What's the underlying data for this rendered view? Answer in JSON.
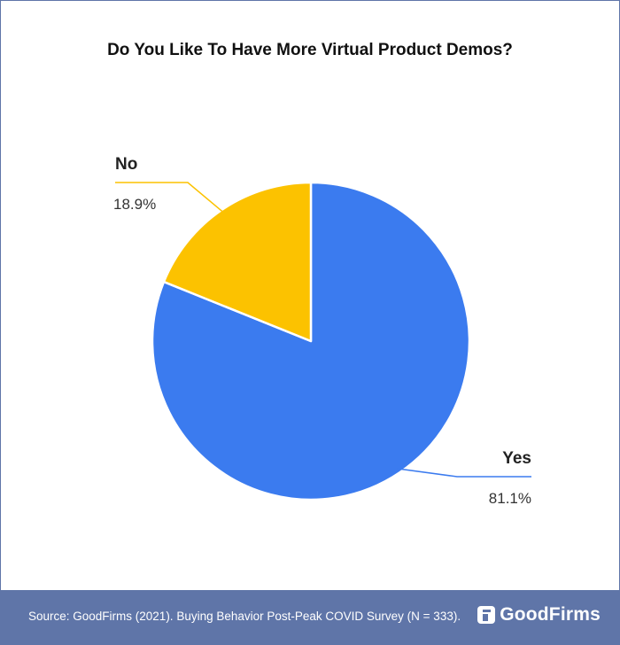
{
  "chart_data": {
    "type": "pie",
    "title": "Do You Like To Have More Virtual Product Demos?",
    "slices": [
      {
        "label": "Yes",
        "value": 81.1,
        "value_label": "81.1%",
        "color": "#3b7bef"
      },
      {
        "label": "No",
        "value": 18.9,
        "value_label": "18.9%",
        "color": "#fcc200"
      }
    ],
    "start": "12 o'clock, clockwise",
    "legend": "none"
  },
  "footer": {
    "source": "Source: GoodFirms (2021). Buying Behavior Post-Peak COVID Survey (N = 333).",
    "brand": "GoodFirms",
    "brand_icon": "goodfirms-logo-icon",
    "background": "#5f75a8"
  }
}
